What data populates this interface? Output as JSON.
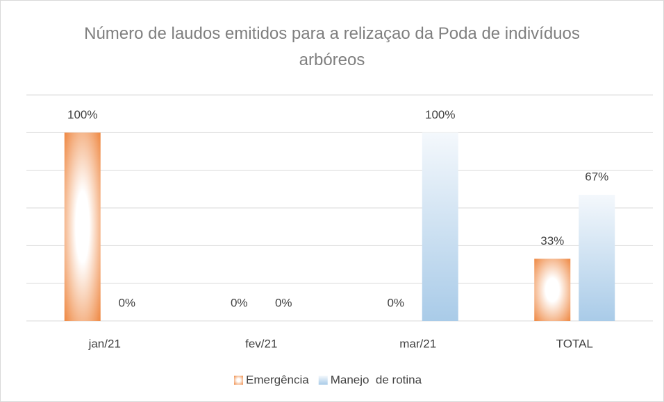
{
  "chart_data": {
    "type": "bar",
    "title": "Número de laudos emitidos para a relizaçao da Poda de indivíduos arbóreos",
    "categories": [
      "jan/21",
      "fev/21",
      "mar/21",
      "TOTAL"
    ],
    "series": [
      {
        "name": "Emergência",
        "color": "#ed7d31",
        "values": [
          100,
          0,
          0,
          33
        ],
        "value_labels": [
          "100%",
          "0%",
          "0%",
          "33%"
        ]
      },
      {
        "name": "Manejo  de rotina",
        "color": "#a9cbe8",
        "values": [
          0,
          0,
          100,
          67
        ],
        "value_labels": [
          "0%",
          "0%",
          "100%",
          "67%"
        ]
      }
    ],
    "ylim": [
      0,
      120
    ],
    "yticks": [
      0,
      20,
      40,
      60,
      80,
      100,
      120
    ],
    "grid": true,
    "legend": "bottom"
  }
}
